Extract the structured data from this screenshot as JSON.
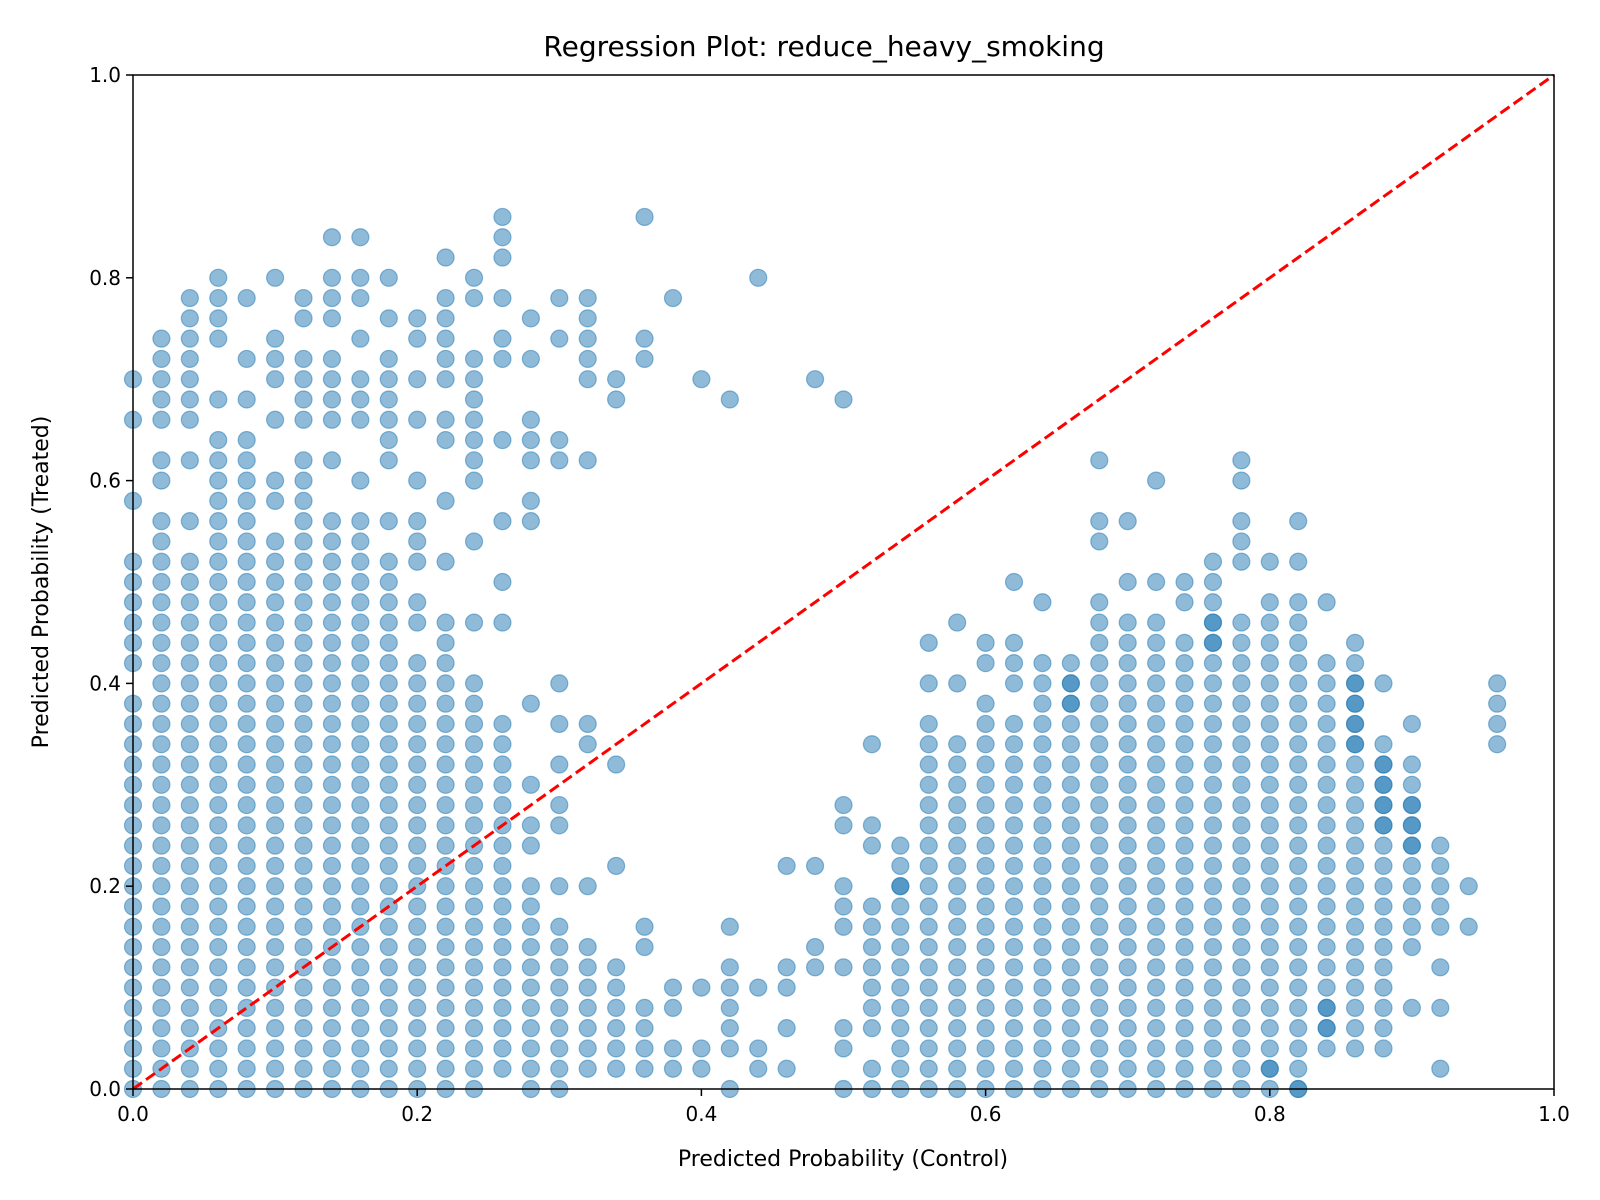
{
  "chart_data": {
    "type": "scatter",
    "title": "Regression Plot: reduce_heavy_smoking",
    "xlabel": "Predicted Probability (Control)",
    "ylabel": "Predicted Probability (Treated)",
    "xlim": [
      0.0,
      1.0
    ],
    "ylim": [
      0.0,
      1.0
    ],
    "xticks": [
      0.0,
      0.2,
      0.4,
      0.6,
      0.8,
      1.0
    ],
    "yticks": [
      0.0,
      0.2,
      0.4,
      0.6,
      0.8,
      1.0
    ],
    "xtick_labels": [
      "0.0",
      "0.2",
      "0.4",
      "0.6",
      "0.8",
      "1.0"
    ],
    "ytick_labels": [
      "0.0",
      "0.2",
      "0.4",
      "0.6",
      "0.8",
      "1.0"
    ],
    "grid": false,
    "marker_color": "#1f77b4",
    "marker_alpha": 0.5,
    "reference_line": {
      "from": [
        0,
        0
      ],
      "to": [
        1,
        1
      ],
      "color": "#ff0000",
      "style": "dashed"
    },
    "dense_columns": [
      {
        "x": 0.0,
        "ymin": 0.0,
        "ymax": 0.38
      },
      {
        "x": 0.02,
        "ymin": 0.0,
        "ymax": 0.42
      },
      {
        "x": 0.04,
        "ymin": 0.0,
        "ymax": 0.44
      },
      {
        "x": 0.06,
        "ymin": 0.0,
        "ymax": 0.52
      },
      {
        "x": 0.08,
        "ymin": 0.0,
        "ymax": 0.5
      },
      {
        "x": 0.1,
        "ymin": 0.0,
        "ymax": 0.48
      },
      {
        "x": 0.12,
        "ymin": 0.0,
        "ymax": 0.5
      },
      {
        "x": 0.14,
        "ymin": 0.0,
        "ymax": 0.52
      },
      {
        "x": 0.16,
        "ymin": 0.0,
        "ymax": 0.46
      },
      {
        "x": 0.18,
        "ymin": 0.0,
        "ymax": 0.44
      },
      {
        "x": 0.2,
        "ymin": 0.0,
        "ymax": 0.42
      },
      {
        "x": 0.22,
        "ymin": 0.0,
        "ymax": 0.38
      },
      {
        "x": 0.24,
        "ymin": 0.0,
        "ymax": 0.36
      },
      {
        "x": 0.26,
        "ymin": 0.02,
        "ymax": 0.34
      },
      {
        "x": 0.28,
        "ymin": 0.0,
        "ymax": 0.16
      },
      {
        "x": 0.3,
        "ymin": 0.0,
        "ymax": 0.16
      },
      {
        "x": 0.32,
        "ymin": 0.02,
        "ymax": 0.12
      },
      {
        "x": 0.34,
        "ymin": 0.02,
        "ymax": 0.12
      },
      {
        "x": 0.36,
        "ymin": 0.04,
        "ymax": 0.08
      },
      {
        "x": 0.54,
        "ymin": 0.0,
        "ymax": 0.24
      },
      {
        "x": 0.56,
        "ymin": 0.0,
        "ymax": 0.28
      },
      {
        "x": 0.58,
        "ymin": 0.0,
        "ymax": 0.28
      },
      {
        "x": 0.6,
        "ymin": 0.0,
        "ymax": 0.3
      },
      {
        "x": 0.62,
        "ymin": 0.0,
        "ymax": 0.32
      },
      {
        "x": 0.64,
        "ymin": 0.0,
        "ymax": 0.38
      },
      {
        "x": 0.66,
        "ymin": 0.0,
        "ymax": 0.42
      },
      {
        "x": 0.68,
        "ymin": 0.0,
        "ymax": 0.42
      },
      {
        "x": 0.7,
        "ymin": 0.0,
        "ymax": 0.44
      },
      {
        "x": 0.72,
        "ymin": 0.0,
        "ymax": 0.44
      },
      {
        "x": 0.74,
        "ymin": 0.0,
        "ymax": 0.42
      },
      {
        "x": 0.76,
        "ymin": 0.0,
        "ymax": 0.48
      },
      {
        "x": 0.78,
        "ymin": 0.02,
        "ymax": 0.44
      },
      {
        "x": 0.8,
        "ymin": 0.0,
        "ymax": 0.48
      },
      {
        "x": 0.82,
        "ymin": 0.0,
        "ymax": 0.46
      },
      {
        "x": 0.84,
        "ymin": 0.04,
        "ymax": 0.42
      },
      {
        "x": 0.86,
        "ymin": 0.06,
        "ymax": 0.44
      },
      {
        "x": 0.88,
        "ymin": 0.04,
        "ymax": 0.34
      },
      {
        "x": 0.9,
        "ymin": 0.14,
        "ymax": 0.32
      }
    ],
    "sparse_points": [
      [
        0.0,
        0.7
      ],
      [
        0.0,
        0.66
      ],
      [
        0.0,
        0.58
      ],
      [
        0.0,
        0.52
      ],
      [
        0.0,
        0.5
      ],
      [
        0.0,
        0.48
      ],
      [
        0.0,
        0.46
      ],
      [
        0.0,
        0.44
      ],
      [
        0.0,
        0.42
      ],
      [
        0.02,
        0.74
      ],
      [
        0.02,
        0.72
      ],
      [
        0.02,
        0.7
      ],
      [
        0.02,
        0.68
      ],
      [
        0.02,
        0.66
      ],
      [
        0.02,
        0.62
      ],
      [
        0.02,
        0.6
      ],
      [
        0.02,
        0.56
      ],
      [
        0.02,
        0.54
      ],
      [
        0.02,
        0.52
      ],
      [
        0.02,
        0.5
      ],
      [
        0.02,
        0.48
      ],
      [
        0.02,
        0.46
      ],
      [
        0.02,
        0.44
      ],
      [
        0.04,
        0.78
      ],
      [
        0.04,
        0.76
      ],
      [
        0.04,
        0.74
      ],
      [
        0.04,
        0.72
      ],
      [
        0.04,
        0.7
      ],
      [
        0.04,
        0.68
      ],
      [
        0.04,
        0.66
      ],
      [
        0.04,
        0.62
      ],
      [
        0.04,
        0.56
      ],
      [
        0.04,
        0.52
      ],
      [
        0.04,
        0.5
      ],
      [
        0.04,
        0.48
      ],
      [
        0.04,
        0.46
      ],
      [
        0.06,
        0.8
      ],
      [
        0.06,
        0.78
      ],
      [
        0.06,
        0.76
      ],
      [
        0.06,
        0.74
      ],
      [
        0.06,
        0.68
      ],
      [
        0.06,
        0.64
      ],
      [
        0.06,
        0.62
      ],
      [
        0.06,
        0.6
      ],
      [
        0.06,
        0.58
      ],
      [
        0.06,
        0.56
      ],
      [
        0.06,
        0.54
      ],
      [
        0.08,
        0.78
      ],
      [
        0.08,
        0.72
      ],
      [
        0.08,
        0.68
      ],
      [
        0.08,
        0.64
      ],
      [
        0.08,
        0.62
      ],
      [
        0.08,
        0.6
      ],
      [
        0.08,
        0.58
      ],
      [
        0.08,
        0.56
      ],
      [
        0.08,
        0.54
      ],
      [
        0.08,
        0.52
      ],
      [
        0.1,
        0.8
      ],
      [
        0.1,
        0.74
      ],
      [
        0.1,
        0.72
      ],
      [
        0.1,
        0.7
      ],
      [
        0.1,
        0.66
      ],
      [
        0.1,
        0.6
      ],
      [
        0.1,
        0.58
      ],
      [
        0.1,
        0.54
      ],
      [
        0.1,
        0.52
      ],
      [
        0.1,
        0.5
      ],
      [
        0.12,
        0.78
      ],
      [
        0.12,
        0.76
      ],
      [
        0.12,
        0.72
      ],
      [
        0.12,
        0.7
      ],
      [
        0.12,
        0.68
      ],
      [
        0.12,
        0.66
      ],
      [
        0.12,
        0.62
      ],
      [
        0.12,
        0.6
      ],
      [
        0.12,
        0.58
      ],
      [
        0.12,
        0.56
      ],
      [
        0.12,
        0.54
      ],
      [
        0.12,
        0.52
      ],
      [
        0.14,
        0.84
      ],
      [
        0.14,
        0.8
      ],
      [
        0.14,
        0.78
      ],
      [
        0.14,
        0.76
      ],
      [
        0.14,
        0.72
      ],
      [
        0.14,
        0.7
      ],
      [
        0.14,
        0.68
      ],
      [
        0.14,
        0.66
      ],
      [
        0.14,
        0.62
      ],
      [
        0.14,
        0.56
      ],
      [
        0.14,
        0.54
      ],
      [
        0.16,
        0.84
      ],
      [
        0.16,
        0.8
      ],
      [
        0.16,
        0.78
      ],
      [
        0.16,
        0.74
      ],
      [
        0.16,
        0.7
      ],
      [
        0.16,
        0.68
      ],
      [
        0.16,
        0.66
      ],
      [
        0.16,
        0.6
      ],
      [
        0.16,
        0.56
      ],
      [
        0.16,
        0.54
      ],
      [
        0.16,
        0.52
      ],
      [
        0.16,
        0.5
      ],
      [
        0.16,
        0.48
      ],
      [
        0.18,
        0.8
      ],
      [
        0.18,
        0.76
      ],
      [
        0.18,
        0.72
      ],
      [
        0.18,
        0.7
      ],
      [
        0.18,
        0.68
      ],
      [
        0.18,
        0.66
      ],
      [
        0.18,
        0.64
      ],
      [
        0.18,
        0.62
      ],
      [
        0.18,
        0.56
      ],
      [
        0.18,
        0.52
      ],
      [
        0.18,
        0.5
      ],
      [
        0.18,
        0.48
      ],
      [
        0.18,
        0.46
      ],
      [
        0.2,
        0.76
      ],
      [
        0.2,
        0.74
      ],
      [
        0.2,
        0.7
      ],
      [
        0.2,
        0.66
      ],
      [
        0.2,
        0.6
      ],
      [
        0.2,
        0.56
      ],
      [
        0.2,
        0.54
      ],
      [
        0.2,
        0.52
      ],
      [
        0.2,
        0.48
      ],
      [
        0.2,
        0.46
      ],
      [
        0.22,
        0.82
      ],
      [
        0.22,
        0.78
      ],
      [
        0.22,
        0.76
      ],
      [
        0.22,
        0.74
      ],
      [
        0.22,
        0.72
      ],
      [
        0.22,
        0.7
      ],
      [
        0.22,
        0.66
      ],
      [
        0.22,
        0.64
      ],
      [
        0.22,
        0.58
      ],
      [
        0.22,
        0.52
      ],
      [
        0.22,
        0.46
      ],
      [
        0.22,
        0.44
      ],
      [
        0.22,
        0.42
      ],
      [
        0.22,
        0.4
      ],
      [
        0.24,
        0.8
      ],
      [
        0.24,
        0.78
      ],
      [
        0.24,
        0.72
      ],
      [
        0.24,
        0.7
      ],
      [
        0.24,
        0.68
      ],
      [
        0.24,
        0.66
      ],
      [
        0.24,
        0.64
      ],
      [
        0.24,
        0.62
      ],
      [
        0.24,
        0.6
      ],
      [
        0.24,
        0.54
      ],
      [
        0.24,
        0.46
      ],
      [
        0.24,
        0.4
      ],
      [
        0.24,
        0.38
      ],
      [
        0.26,
        0.86
      ],
      [
        0.26,
        0.84
      ],
      [
        0.26,
        0.82
      ],
      [
        0.26,
        0.78
      ],
      [
        0.26,
        0.74
      ],
      [
        0.26,
        0.72
      ],
      [
        0.26,
        0.64
      ],
      [
        0.26,
        0.56
      ],
      [
        0.26,
        0.5
      ],
      [
        0.26,
        0.46
      ],
      [
        0.26,
        0.36
      ],
      [
        0.28,
        0.76
      ],
      [
        0.28,
        0.72
      ],
      [
        0.28,
        0.66
      ],
      [
        0.28,
        0.64
      ],
      [
        0.28,
        0.62
      ],
      [
        0.28,
        0.58
      ],
      [
        0.28,
        0.56
      ],
      [
        0.28,
        0.38
      ],
      [
        0.28,
        0.3
      ],
      [
        0.28,
        0.26
      ],
      [
        0.28,
        0.24
      ],
      [
        0.28,
        0.2
      ],
      [
        0.28,
        0.18
      ],
      [
        0.3,
        0.78
      ],
      [
        0.3,
        0.74
      ],
      [
        0.3,
        0.64
      ],
      [
        0.3,
        0.62
      ],
      [
        0.3,
        0.4
      ],
      [
        0.3,
        0.36
      ],
      [
        0.3,
        0.32
      ],
      [
        0.3,
        0.28
      ],
      [
        0.3,
        0.26
      ],
      [
        0.3,
        0.2
      ],
      [
        0.32,
        0.78
      ],
      [
        0.32,
        0.76
      ],
      [
        0.32,
        0.74
      ],
      [
        0.32,
        0.72
      ],
      [
        0.32,
        0.7
      ],
      [
        0.32,
        0.62
      ],
      [
        0.32,
        0.36
      ],
      [
        0.32,
        0.34
      ],
      [
        0.32,
        0.2
      ],
      [
        0.32,
        0.14
      ],
      [
        0.34,
        0.7
      ],
      [
        0.34,
        0.68
      ],
      [
        0.34,
        0.32
      ],
      [
        0.34,
        0.22
      ],
      [
        0.36,
        0.86
      ],
      [
        0.36,
        0.74
      ],
      [
        0.36,
        0.72
      ],
      [
        0.36,
        0.16
      ],
      [
        0.36,
        0.14
      ],
      [
        0.36,
        0.02
      ],
      [
        0.38,
        0.78
      ],
      [
        0.38,
        0.1
      ],
      [
        0.38,
        0.08
      ],
      [
        0.38,
        0.04
      ],
      [
        0.38,
        0.02
      ],
      [
        0.4,
        0.7
      ],
      [
        0.4,
        0.1
      ],
      [
        0.4,
        0.04
      ],
      [
        0.4,
        0.02
      ],
      [
        0.42,
        0.68
      ],
      [
        0.42,
        0.16
      ],
      [
        0.42,
        0.12
      ],
      [
        0.42,
        0.1
      ],
      [
        0.42,
        0.08
      ],
      [
        0.42,
        0.06
      ],
      [
        0.42,
        0.04
      ],
      [
        0.42,
        0.0
      ],
      [
        0.44,
        0.8
      ],
      [
        0.44,
        0.1
      ],
      [
        0.44,
        0.04
      ],
      [
        0.44,
        0.02
      ],
      [
        0.46,
        0.22
      ],
      [
        0.46,
        0.12
      ],
      [
        0.46,
        0.1
      ],
      [
        0.46,
        0.06
      ],
      [
        0.46,
        0.02
      ],
      [
        0.48,
        0.7
      ],
      [
        0.48,
        0.22
      ],
      [
        0.48,
        0.14
      ],
      [
        0.48,
        0.12
      ],
      [
        0.5,
        0.68
      ],
      [
        0.5,
        0.28
      ],
      [
        0.5,
        0.26
      ],
      [
        0.5,
        0.2
      ],
      [
        0.5,
        0.18
      ],
      [
        0.5,
        0.16
      ],
      [
        0.5,
        0.12
      ],
      [
        0.5,
        0.06
      ],
      [
        0.5,
        0.04
      ],
      [
        0.5,
        0.0
      ],
      [
        0.52,
        0.34
      ],
      [
        0.52,
        0.26
      ],
      [
        0.52,
        0.24
      ],
      [
        0.52,
        0.18
      ],
      [
        0.52,
        0.16
      ],
      [
        0.52,
        0.14
      ],
      [
        0.52,
        0.12
      ],
      [
        0.52,
        0.1
      ],
      [
        0.52,
        0.08
      ],
      [
        0.52,
        0.06
      ],
      [
        0.52,
        0.02
      ],
      [
        0.52,
        0.0
      ],
      [
        0.54,
        0.2
      ],
      [
        0.56,
        0.44
      ],
      [
        0.56,
        0.4
      ],
      [
        0.56,
        0.36
      ],
      [
        0.56,
        0.34
      ],
      [
        0.56,
        0.32
      ],
      [
        0.56,
        0.3
      ],
      [
        0.58,
        0.46
      ],
      [
        0.58,
        0.4
      ],
      [
        0.58,
        0.34
      ],
      [
        0.58,
        0.32
      ],
      [
        0.58,
        0.3
      ],
      [
        0.6,
        0.44
      ],
      [
        0.6,
        0.42
      ],
      [
        0.6,
        0.38
      ],
      [
        0.6,
        0.36
      ],
      [
        0.6,
        0.34
      ],
      [
        0.6,
        0.32
      ],
      [
        0.62,
        0.5
      ],
      [
        0.62,
        0.44
      ],
      [
        0.62,
        0.42
      ],
      [
        0.62,
        0.4
      ],
      [
        0.62,
        0.36
      ],
      [
        0.62,
        0.34
      ],
      [
        0.64,
        0.48
      ],
      [
        0.64,
        0.42
      ],
      [
        0.64,
        0.4
      ],
      [
        0.66,
        0.4
      ],
      [
        0.66,
        0.38
      ],
      [
        0.68,
        0.62
      ],
      [
        0.68,
        0.56
      ],
      [
        0.68,
        0.54
      ],
      [
        0.68,
        0.48
      ],
      [
        0.68,
        0.46
      ],
      [
        0.68,
        0.44
      ],
      [
        0.7,
        0.56
      ],
      [
        0.7,
        0.5
      ],
      [
        0.7,
        0.46
      ],
      [
        0.72,
        0.6
      ],
      [
        0.72,
        0.5
      ],
      [
        0.72,
        0.46
      ],
      [
        0.74,
        0.5
      ],
      [
        0.74,
        0.48
      ],
      [
        0.74,
        0.44
      ],
      [
        0.76,
        0.52
      ],
      [
        0.76,
        0.5
      ],
      [
        0.76,
        0.46
      ],
      [
        0.76,
        0.44
      ],
      [
        0.78,
        0.62
      ],
      [
        0.78,
        0.6
      ],
      [
        0.78,
        0.56
      ],
      [
        0.78,
        0.54
      ],
      [
        0.78,
        0.52
      ],
      [
        0.78,
        0.46
      ],
      [
        0.78,
        0.0
      ],
      [
        0.8,
        0.52
      ],
      [
        0.8,
        0.02
      ],
      [
        0.82,
        0.56
      ],
      [
        0.82,
        0.52
      ],
      [
        0.82,
        0.48
      ],
      [
        0.82,
        0.0
      ],
      [
        0.84,
        0.48
      ],
      [
        0.84,
        0.08
      ],
      [
        0.84,
        0.06
      ],
      [
        0.86,
        0.4
      ],
      [
        0.86,
        0.38
      ],
      [
        0.86,
        0.36
      ],
      [
        0.86,
        0.34
      ],
      [
        0.86,
        0.04
      ],
      [
        0.88,
        0.4
      ],
      [
        0.88,
        0.32
      ],
      [
        0.88,
        0.3
      ],
      [
        0.88,
        0.28
      ],
      [
        0.88,
        0.26
      ],
      [
        0.9,
        0.36
      ],
      [
        0.9,
        0.28
      ],
      [
        0.9,
        0.26
      ],
      [
        0.9,
        0.24
      ],
      [
        0.9,
        0.08
      ],
      [
        0.92,
        0.24
      ],
      [
        0.92,
        0.22
      ],
      [
        0.92,
        0.2
      ],
      [
        0.92,
        0.18
      ],
      [
        0.92,
        0.16
      ],
      [
        0.92,
        0.12
      ],
      [
        0.92,
        0.08
      ],
      [
        0.92,
        0.02
      ],
      [
        0.94,
        0.2
      ],
      [
        0.94,
        0.16
      ],
      [
        0.96,
        0.4
      ],
      [
        0.96,
        0.38
      ],
      [
        0.96,
        0.36
      ],
      [
        0.96,
        0.34
      ]
    ]
  }
}
